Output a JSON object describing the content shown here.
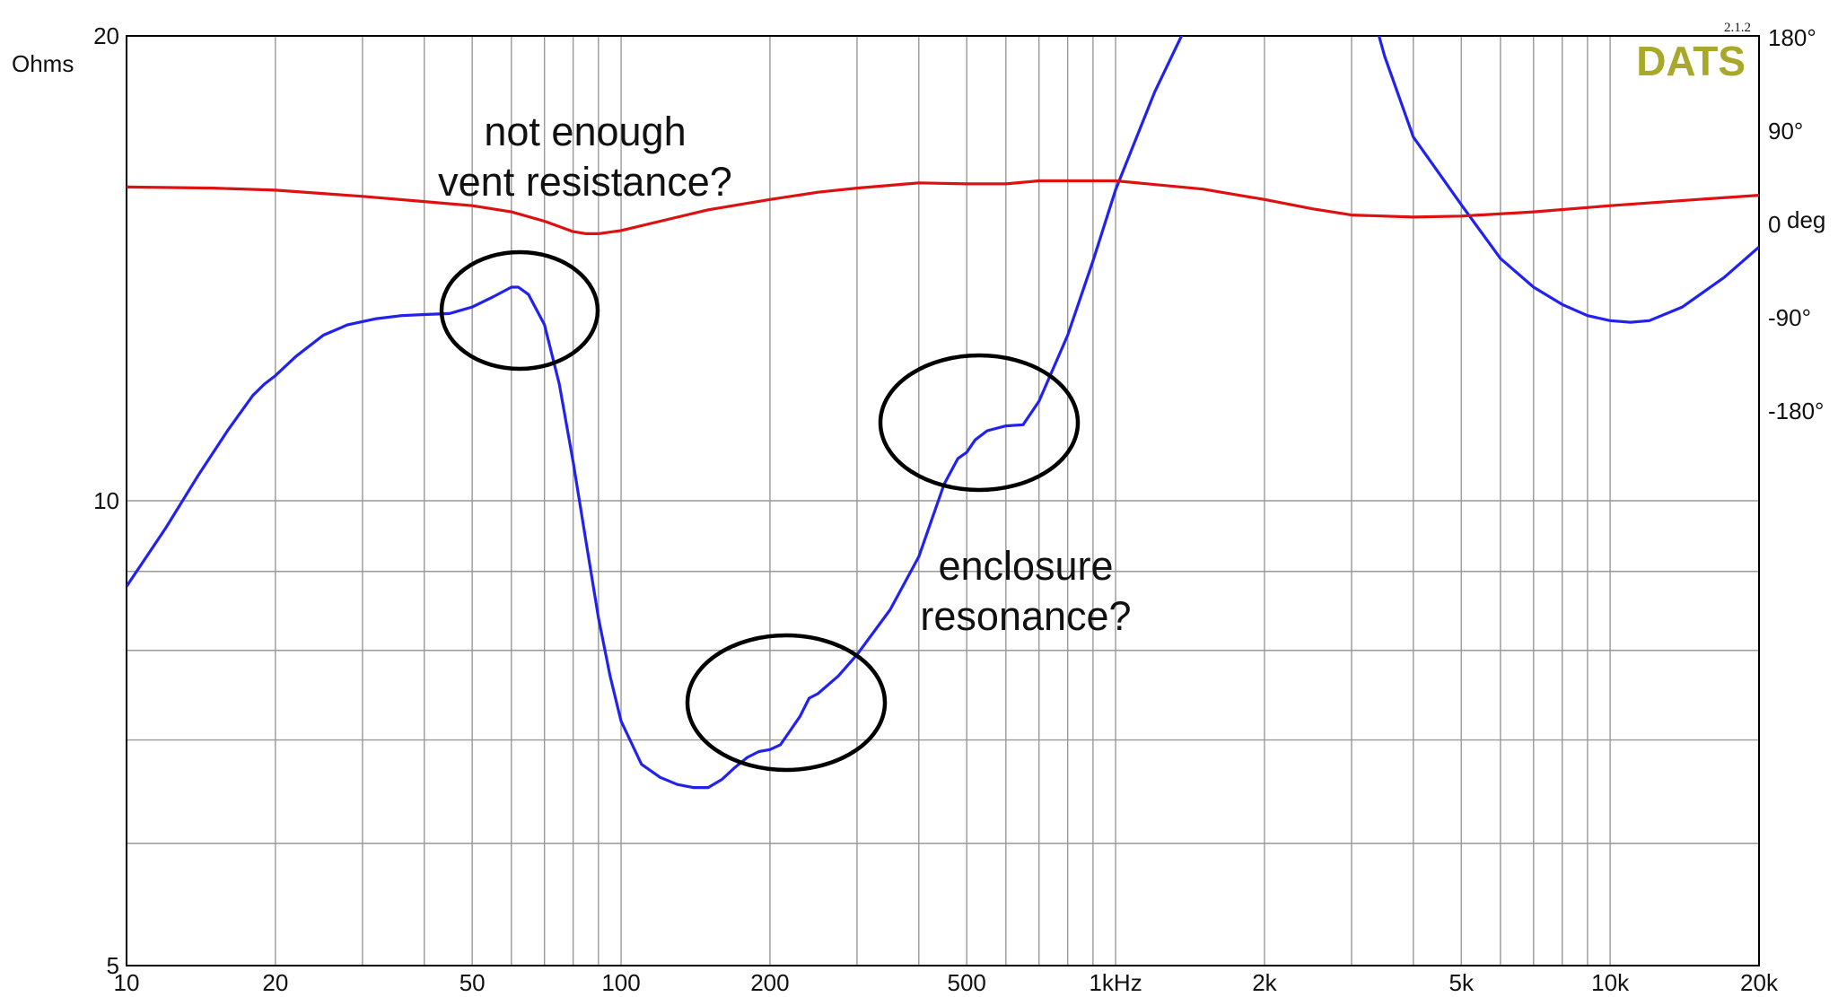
{
  "brand": {
    "name": "DATS",
    "version": "2.1.2",
    "color": "#a8a82a"
  },
  "chart_data": {
    "type": "line",
    "x_scale": "log",
    "y_scale": "log",
    "xlim": [
      10,
      20000
    ],
    "ylim": [
      5,
      20
    ],
    "y2lim": [
      -180,
      180
    ],
    "grid": true,
    "x_ticks": [
      {
        "value": 10,
        "label": "10"
      },
      {
        "value": 20,
        "label": "20"
      },
      {
        "value": 50,
        "label": "50"
      },
      {
        "value": 100,
        "label": "100"
      },
      {
        "value": 200,
        "label": "200"
      },
      {
        "value": 500,
        "label": "500"
      },
      {
        "value": 1000,
        "label": "1kHz"
      },
      {
        "value": 2000,
        "label": "2k"
      },
      {
        "value": 5000,
        "label": "5k"
      },
      {
        "value": 10000,
        "label": "10k"
      },
      {
        "value": 20000,
        "label": "20k"
      }
    ],
    "y_ticks": [
      {
        "value": 20,
        "label": "20"
      },
      {
        "value": 10,
        "label": "10"
      },
      {
        "value": 5,
        "label": "5"
      }
    ],
    "y_gridlines": [
      6,
      7,
      8,
      9,
      10
    ],
    "y2_ticks": [
      {
        "value": 180,
        "label": "180°"
      },
      {
        "value": 90,
        "label": "90°"
      },
      {
        "value": 0,
        "label": "0"
      },
      {
        "value": -90,
        "label": "-90°"
      },
      {
        "value": -180,
        "label": "-180°"
      }
    ],
    "ylabel": "Ohms",
    "y2label": "deg",
    "y2_unit_color": "#dd1111",
    "series": [
      {
        "axis": "left",
        "color": "#2222ee",
        "x": [
          10,
          12,
          14,
          16,
          18,
          19,
          20,
          22,
          25,
          28,
          32,
          36,
          40,
          45,
          50,
          55,
          60,
          62,
          65,
          70,
          75,
          80,
          85,
          90,
          95,
          100,
          110,
          120,
          130,
          140,
          150,
          160,
          170,
          180,
          190,
          200,
          210,
          220,
          230,
          240,
          250,
          275,
          300,
          350,
          400,
          450,
          480,
          500,
          520,
          550,
          600,
          650,
          700,
          800,
          900,
          1000,
          1200,
          1400,
          1500,
          3200,
          3500,
          4000,
          5000,
          6000,
          7000,
          8000,
          9000,
          10000,
          11000,
          12000,
          14000,
          17000,
          20000
        ],
        "y": [
          8.8,
          9.6,
          10.4,
          11.1,
          11.7,
          11.9,
          12.05,
          12.4,
          12.8,
          13.0,
          13.12,
          13.18,
          13.2,
          13.22,
          13.35,
          13.55,
          13.75,
          13.75,
          13.6,
          13.0,
          11.9,
          10.6,
          9.4,
          8.4,
          7.7,
          7.2,
          6.75,
          6.62,
          6.55,
          6.52,
          6.52,
          6.6,
          6.72,
          6.82,
          6.88,
          6.9,
          6.95,
          7.1,
          7.25,
          7.45,
          7.5,
          7.7,
          7.95,
          8.5,
          9.2,
          10.25,
          10.65,
          10.75,
          10.95,
          11.1,
          11.18,
          11.2,
          11.6,
          12.8,
          14.3,
          15.9,
          18.4,
          20.4,
          21.5,
          21.5,
          19.4,
          17.2,
          15.55,
          14.35,
          13.75,
          13.4,
          13.18,
          13.08,
          13.05,
          13.08,
          13.35,
          13.95,
          14.6
        ]
      },
      {
        "axis": "right",
        "color": "#dd1111",
        "x": [
          10,
          15,
          20,
          30,
          40,
          50,
          60,
          70,
          80,
          85,
          90,
          100,
          120,
          150,
          200,
          250,
          300,
          400,
          500,
          600,
          700,
          1000,
          1500,
          2000,
          2500,
          3000,
          4000,
          5000,
          7000,
          10000,
          15000,
          20000
        ],
        "y": [
          36,
          35,
          33,
          27,
          22,
          18,
          12,
          3,
          -7,
          -9,
          -9,
          -6,
          3,
          14,
          24,
          31,
          35,
          40,
          39,
          39,
          42,
          42,
          34,
          24,
          15,
          9,
          7,
          8,
          12,
          18,
          24,
          28
        ]
      }
    ]
  },
  "annotations": {
    "vent_question_line1": "not enough",
    "vent_question_line2": "vent resistance?",
    "enclosure_question_line1": "enclosure",
    "enclosure_question_line2": "resonance?"
  }
}
